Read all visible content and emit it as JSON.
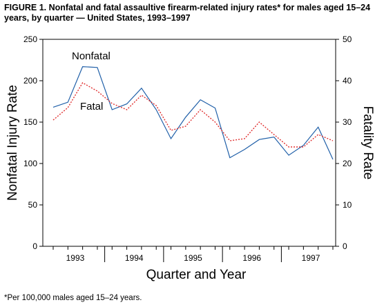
{
  "title": "FIGURE 1. Nonfatal and fatal assaultive firearm-related injury rates* for males aged 15–24 years, by quarter — United States, 1993–1997",
  "footnote": "*Per 100,000 males aged 15–24 years.",
  "chart_data": {
    "type": "line",
    "xlabel": "Quarter and Year",
    "ylabel_left": "Nonfatal Injury Rate",
    "ylabel_right": "Fatality Rate",
    "ylim_left": [
      0,
      250
    ],
    "ylim_right": [
      0,
      50
    ],
    "yticks_left": [
      0,
      50,
      100,
      150,
      200,
      250
    ],
    "yticks_right": [
      0,
      10,
      20,
      30,
      40,
      50
    ],
    "years": [
      "1993",
      "1994",
      "1995",
      "1996",
      "1997"
    ],
    "quarters_per_year": 4,
    "series": [
      {
        "name": "Nonfatal",
        "axis": "left",
        "color": "#1f5fa8",
        "style": "solid",
        "values": [
          168,
          174,
          217,
          216,
          165,
          172,
          191,
          165,
          130,
          156,
          177,
          167,
          107,
          117,
          129,
          132,
          110,
          122,
          144,
          105
        ]
      },
      {
        "name": "Fatal",
        "axis": "right",
        "color": "#e03030",
        "style": "dotted",
        "values": [
          30.5,
          33.5,
          39.5,
          37.5,
          34.5,
          33.0,
          36.5,
          34.0,
          28.0,
          29.0,
          33.0,
          30.0,
          25.5,
          26.0,
          30.0,
          27.0,
          24.0,
          24.0,
          27.0,
          25.5
        ]
      }
    ]
  }
}
